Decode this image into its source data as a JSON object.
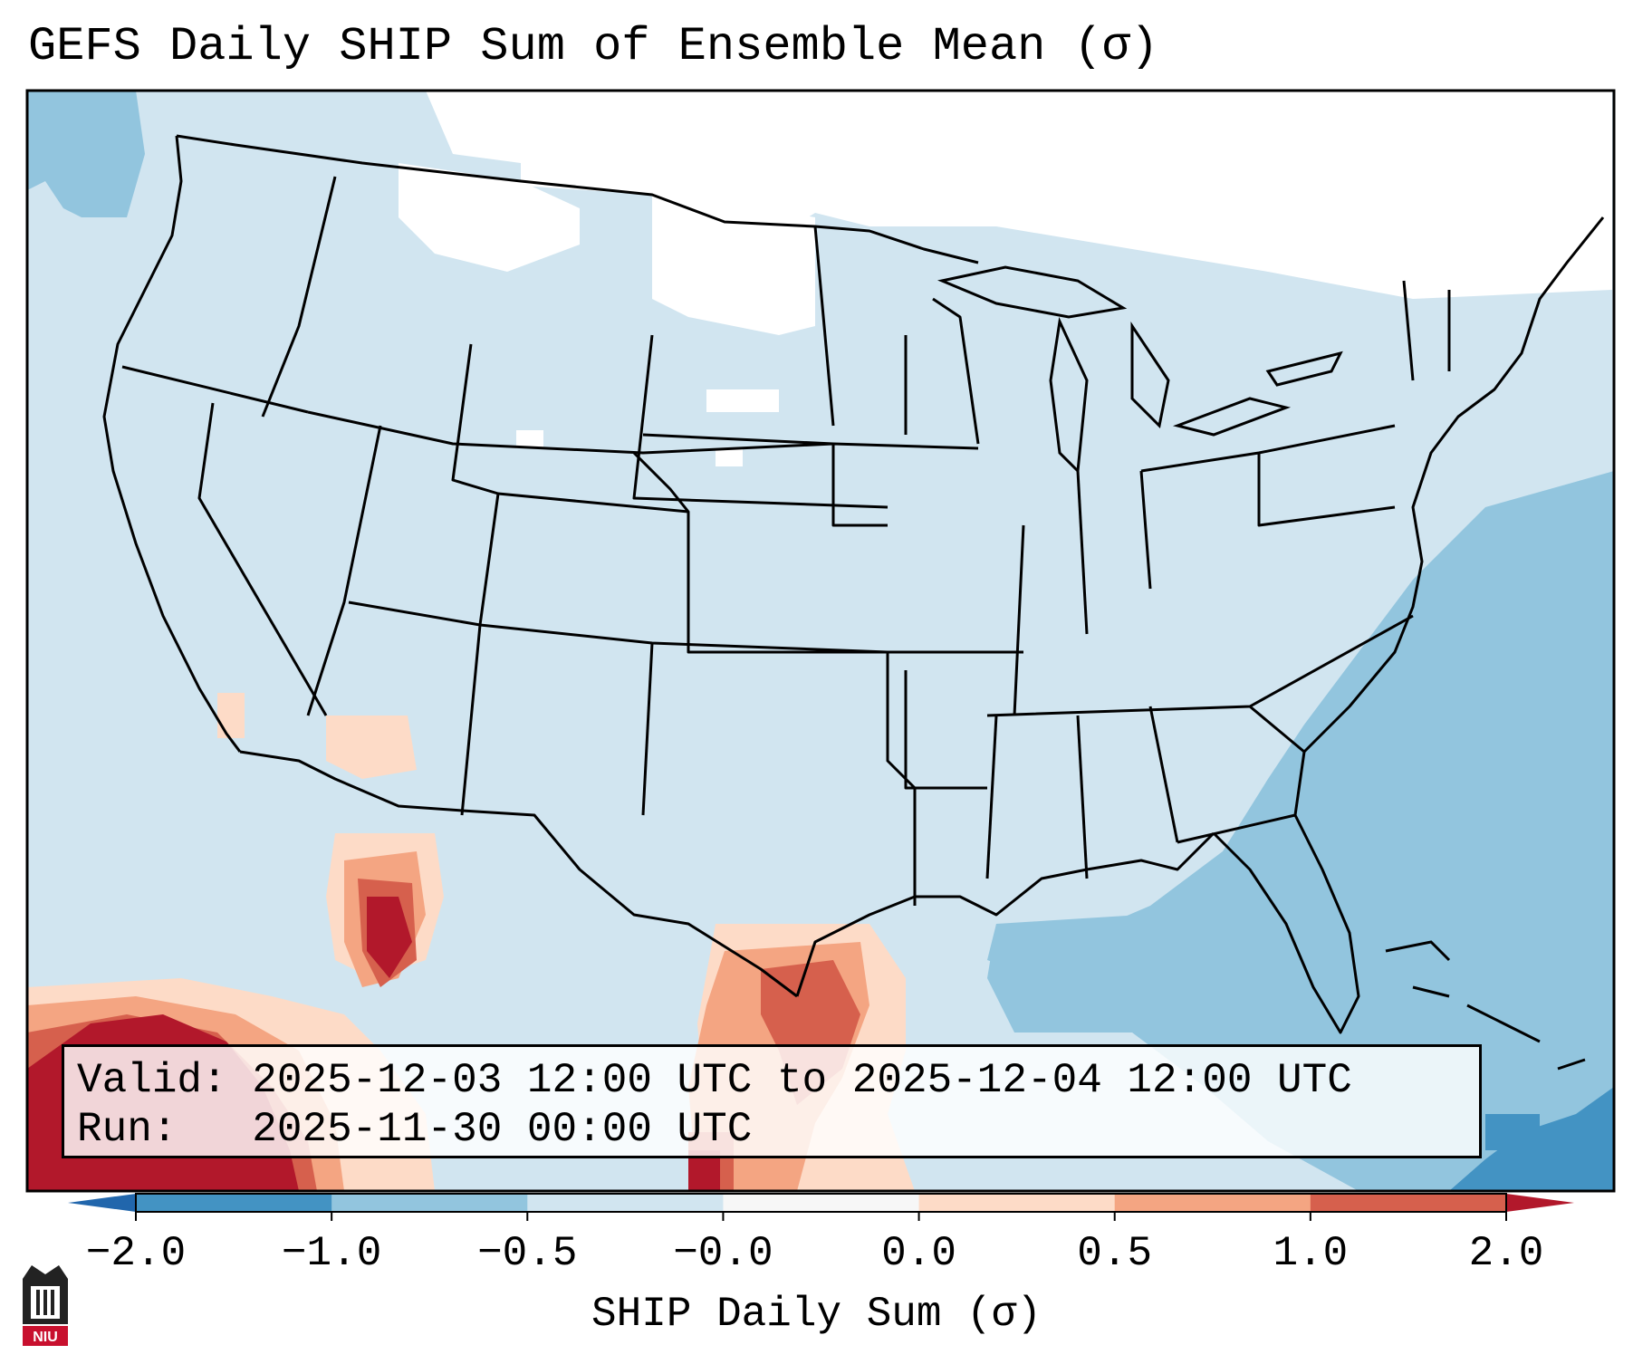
{
  "title": "GEFS Daily SHIP Sum of Ensemble Mean (σ)",
  "valid_label": "Valid:",
  "valid_value": "2025-12-03 12:00 UTC to 2025-12-04 12:00 UTC",
  "run_label": "Run:",
  "run_value": "2025-11-30 00:00 UTC",
  "colorbar": {
    "label": "SHIP Daily Sum (σ)",
    "tick_labels": [
      "−2.0",
      "−1.0",
      "−0.5",
      "−0.0",
      "0.0",
      "0.5",
      "1.0",
      "2.0"
    ],
    "colors": [
      "#4393c3",
      "#92c5de",
      "#d1e5f0",
      "#f7f7f7",
      "#fddbc7",
      "#f4a582",
      "#d6604d"
    ],
    "extend_min_color": "#2166ac",
    "extend_max_color": "#b2182b"
  },
  "map": {
    "projection": "Lambert Conformal (CONUS)",
    "background_value_color": "#d1e5f0",
    "ocean_color": "#92c5de",
    "borders": "state and national boundaries, coastlines"
  },
  "logo": {
    "text": "NIU"
  },
  "colors": {
    "high_anomaly": "#b2182b",
    "moderate_anomaly": "#d6604d",
    "low_anomaly": "#f4a582",
    "slight_anomaly": "#fddbc7",
    "neutral": "#ffffff",
    "slight_negative": "#d1e5f0",
    "negative": "#92c5de",
    "strong_negative": "#4393c3"
  }
}
